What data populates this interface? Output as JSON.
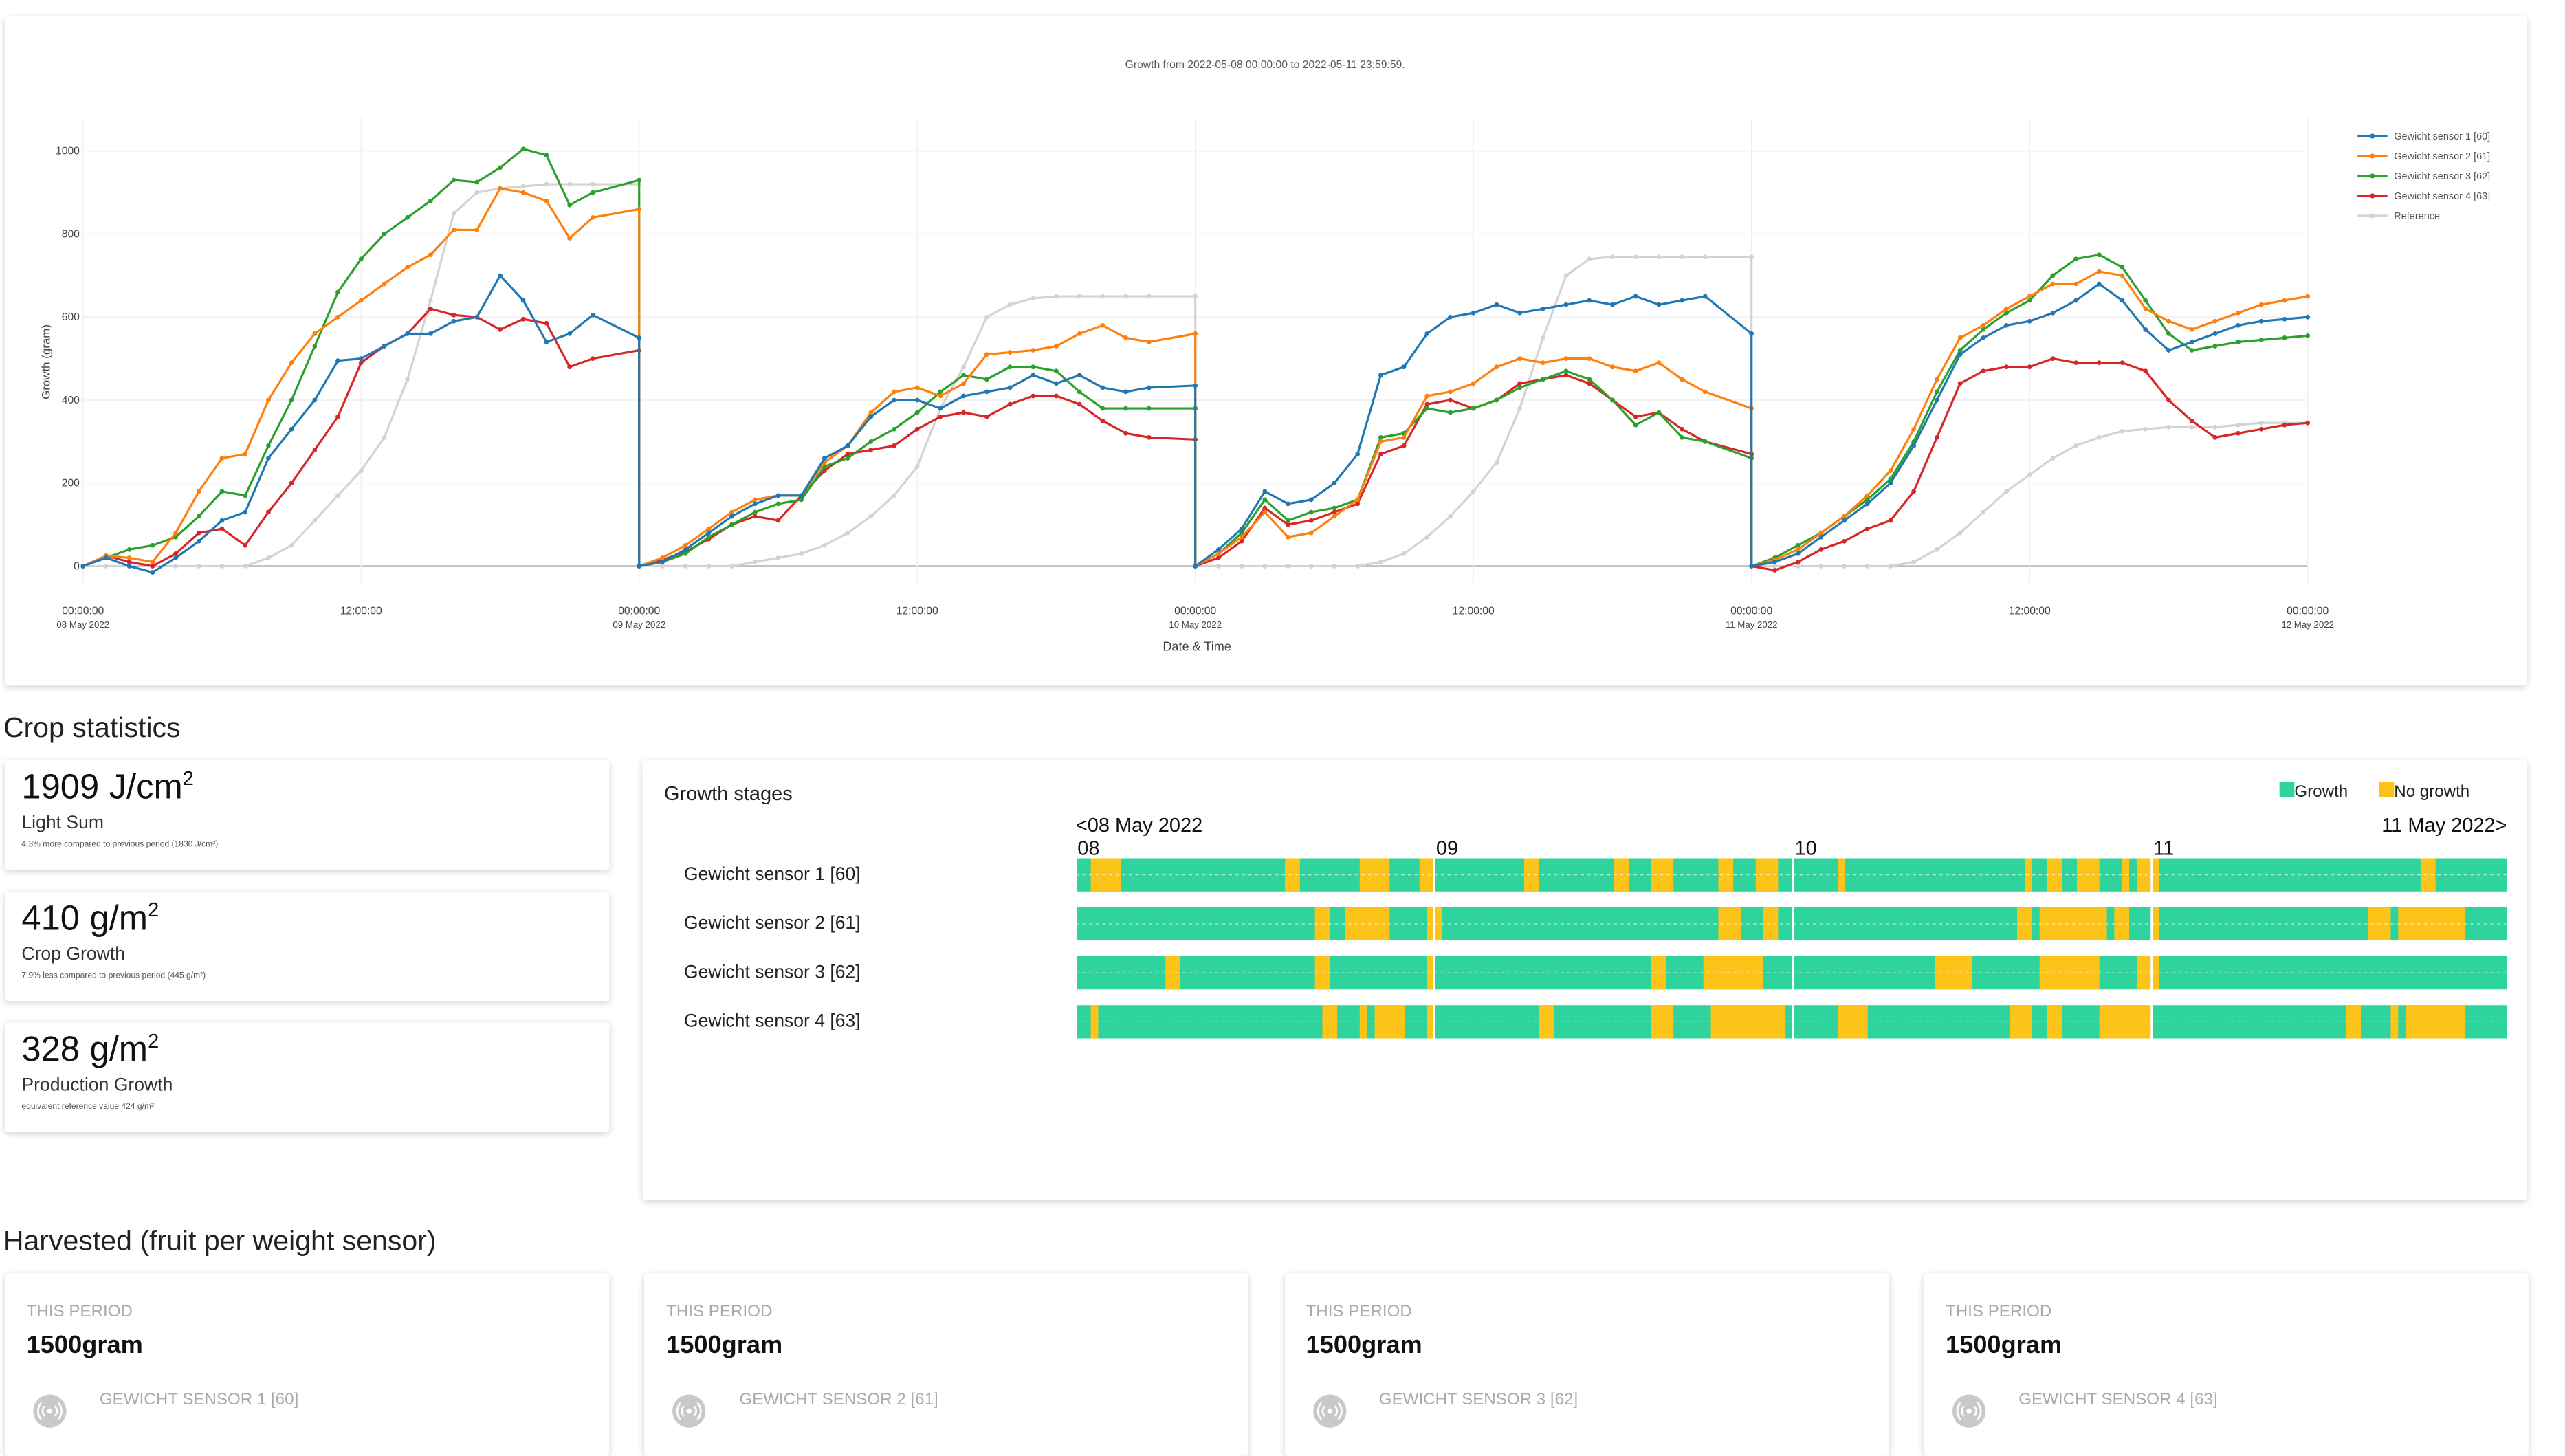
{
  "chart_data": [
    {
      "type": "line",
      "title": "Growth from 2022-05-08 00:00:00  to  2022-05-11 23:59:59.",
      "x_label": "Date & Time",
      "y_label": "Growth (gram)",
      "x": [
        "2022-05-08 00:00:00",
        "2022-05-08 01:00:00",
        "2022-05-08 02:00:00",
        "2022-05-08 03:00:00",
        "2022-05-08 04:00:00",
        "2022-05-08 05:00:00",
        "2022-05-08 06:00:00",
        "2022-05-08 07:00:00",
        "2022-05-08 08:00:00",
        "2022-05-08 09:00:00",
        "2022-05-08 10:00:00",
        "2022-05-08 11:00:00",
        "2022-05-08 12:00:00",
        "2022-05-08 13:00:00",
        "2022-05-08 14:00:00",
        "2022-05-08 15:00:00",
        "2022-05-08 16:00:00",
        "2022-05-08 17:00:00",
        "2022-05-08 18:00:00",
        "2022-05-08 19:00:00",
        "2022-05-08 20:00:00",
        "2022-05-08 21:00:00",
        "2022-05-08 22:00:00",
        "2022-05-08 23:59:59",
        "2022-05-09 00:00:00",
        "2022-05-09 01:00:00",
        "2022-05-09 02:00:00",
        "2022-05-09 03:00:00",
        "2022-05-09 04:00:00",
        "2022-05-09 05:00:00",
        "2022-05-09 06:00:00",
        "2022-05-09 07:00:00",
        "2022-05-09 08:00:00",
        "2022-05-09 09:00:00",
        "2022-05-09 10:00:00",
        "2022-05-09 11:00:00",
        "2022-05-09 12:00:00",
        "2022-05-09 13:00:00",
        "2022-05-09 14:00:00",
        "2022-05-09 15:00:00",
        "2022-05-09 16:00:00",
        "2022-05-09 17:00:00",
        "2022-05-09 18:00:00",
        "2022-05-09 19:00:00",
        "2022-05-09 20:00:00",
        "2022-05-09 21:00:00",
        "2022-05-09 22:00:00",
        "2022-05-09 23:59:59",
        "2022-05-10 00:00:00",
        "2022-05-10 01:00:00",
        "2022-05-10 02:00:00",
        "2022-05-10 03:00:00",
        "2022-05-10 04:00:00",
        "2022-05-10 05:00:00",
        "2022-05-10 06:00:00",
        "2022-05-10 07:00:00",
        "2022-05-10 08:00:00",
        "2022-05-10 09:00:00",
        "2022-05-10 10:00:00",
        "2022-05-10 11:00:00",
        "2022-05-10 12:00:00",
        "2022-05-10 13:00:00",
        "2022-05-10 14:00:00",
        "2022-05-10 15:00:00",
        "2022-05-10 16:00:00",
        "2022-05-10 17:00:00",
        "2022-05-10 18:00:00",
        "2022-05-10 19:00:00",
        "2022-05-10 20:00:00",
        "2022-05-10 21:00:00",
        "2022-05-10 22:00:00",
        "2022-05-10 23:59:59",
        "2022-05-11 00:00:00",
        "2022-05-11 01:00:00",
        "2022-05-11 02:00:00",
        "2022-05-11 03:00:00",
        "2022-05-11 04:00:00",
        "2022-05-11 05:00:00",
        "2022-05-11 06:00:00",
        "2022-05-11 07:00:00",
        "2022-05-11 08:00:00",
        "2022-05-11 09:00:00",
        "2022-05-11 10:00:00",
        "2022-05-11 11:00:00",
        "2022-05-11 12:00:00",
        "2022-05-11 13:00:00",
        "2022-05-11 14:00:00",
        "2022-05-11 15:00:00",
        "2022-05-11 16:00:00",
        "2022-05-11 17:00:00",
        "2022-05-11 18:00:00",
        "2022-05-11 19:00:00",
        "2022-05-11 20:00:00",
        "2022-05-11 21:00:00",
        "2022-05-11 22:00:00",
        "2022-05-11 23:00:00",
        "2022-05-12 00:00:00"
      ],
      "series": [
        {
          "name": "Gewicht sensor 1 [60]",
          "color": "#1f77b4",
          "values": [
            0,
            20,
            0,
            -15,
            20,
            60,
            110,
            130,
            260,
            330,
            400,
            495,
            500,
            530,
            560,
            560,
            590,
            600,
            700,
            640,
            540,
            560,
            605,
            550,
            0,
            10,
            40,
            80,
            120,
            150,
            170,
            170,
            260,
            290,
            360,
            400,
            400,
            380,
            410,
            420,
            430,
            460,
            440,
            460,
            430,
            420,
            430,
            435,
            0,
            40,
            90,
            180,
            150,
            160,
            200,
            270,
            460,
            480,
            560,
            600,
            610,
            630,
            610,
            620,
            630,
            640,
            630,
            650,
            630,
            640,
            650,
            560,
            0,
            10,
            30,
            70,
            110,
            150,
            200,
            290,
            400,
            510,
            550,
            580,
            590,
            610,
            640,
            680,
            640,
            570,
            520,
            540,
            560,
            580,
            590,
            595,
            600
          ]
        },
        {
          "name": "Gewicht sensor 2 [61]",
          "color": "#ff7f0e",
          "values": [
            0,
            25,
            20,
            10,
            80,
            180,
            260,
            270,
            400,
            490,
            560,
            600,
            640,
            680,
            720,
            750,
            810,
            810,
            910,
            900,
            880,
            790,
            840,
            860,
            0,
            20,
            50,
            90,
            130,
            160,
            170,
            170,
            250,
            290,
            370,
            420,
            430,
            410,
            440,
            510,
            515,
            520,
            530,
            560,
            580,
            550,
            540,
            560,
            0,
            30,
            70,
            130,
            70,
            80,
            120,
            160,
            300,
            310,
            410,
            420,
            440,
            480,
            500,
            490,
            500,
            500,
            480,
            470,
            490,
            450,
            420,
            380,
            0,
            15,
            40,
            80,
            120,
            170,
            230,
            330,
            450,
            550,
            580,
            620,
            650,
            680,
            680,
            710,
            700,
            620,
            590,
            570,
            590,
            610,
            630,
            640,
            650
          ]
        },
        {
          "name": "Gewicht sensor 3 [62]",
          "color": "#2ca02c",
          "values": [
            0,
            20,
            40,
            50,
            70,
            120,
            180,
            170,
            290,
            400,
            530,
            660,
            740,
            800,
            840,
            880,
            930,
            925,
            960,
            1005,
            990,
            870,
            900,
            930,
            0,
            10,
            30,
            70,
            100,
            130,
            150,
            160,
            240,
            260,
            300,
            330,
            370,
            420,
            460,
            450,
            480,
            480,
            470,
            420,
            380,
            380,
            380,
            380,
            0,
            30,
            80,
            160,
            110,
            130,
            140,
            160,
            310,
            320,
            380,
            370,
            380,
            400,
            430,
            450,
            470,
            450,
            400,
            340,
            370,
            310,
            300,
            260,
            0,
            20,
            50,
            80,
            120,
            160,
            210,
            300,
            420,
            520,
            570,
            610,
            640,
            700,
            740,
            750,
            720,
            640,
            560,
            520,
            530,
            540,
            545,
            550,
            555
          ]
        },
        {
          "name": "Gewicht sensor 4 [63]",
          "color": "#d62728",
          "values": [
            0,
            25,
            10,
            0,
            30,
            80,
            90,
            50,
            130,
            200,
            280,
            360,
            490,
            530,
            560,
            620,
            605,
            600,
            570,
            595,
            585,
            480,
            500,
            520,
            0,
            15,
            35,
            65,
            100,
            120,
            110,
            170,
            230,
            270,
            280,
            290,
            330,
            360,
            370,
            360,
            390,
            410,
            410,
            390,
            350,
            320,
            310,
            305,
            0,
            20,
            60,
            140,
            100,
            110,
            130,
            150,
            270,
            290,
            390,
            400,
            380,
            400,
            440,
            450,
            460,
            440,
            400,
            360,
            370,
            330,
            300,
            270,
            0,
            -10,
            10,
            40,
            60,
            90,
            110,
            180,
            310,
            440,
            470,
            480,
            480,
            500,
            490,
            490,
            490,
            470,
            400,
            350,
            310,
            320,
            330,
            340,
            345
          ]
        },
        {
          "name": "Reference",
          "color": "#d3d3d3",
          "values": [
            0,
            0,
            0,
            0,
            0,
            0,
            0,
            0,
            20,
            50,
            110,
            170,
            230,
            310,
            450,
            640,
            850,
            900,
            910,
            915,
            920,
            920,
            920,
            920,
            0,
            0,
            0,
            0,
            0,
            10,
            20,
            30,
            50,
            80,
            120,
            170,
            240,
            380,
            480,
            600,
            630,
            645,
            650,
            650,
            650,
            650,
            650,
            650,
            0,
            0,
            0,
            0,
            0,
            0,
            0,
            0,
            10,
            30,
            70,
            120,
            180,
            250,
            380,
            550,
            700,
            740,
            745,
            745,
            745,
            745,
            745,
            745,
            0,
            0,
            0,
            0,
            0,
            0,
            0,
            10,
            40,
            80,
            130,
            180,
            220,
            260,
            290,
            310,
            325,
            330,
            335,
            335,
            335,
            340,
            345,
            345,
            345
          ]
        }
      ],
      "xlim": [
        "2022-05-08 00:00:00",
        "2022-05-12 00:00:00"
      ],
      "ylim": [
        -40,
        1080
      ],
      "yticks": [
        0,
        200,
        400,
        600,
        800,
        1000
      ],
      "xticks": [
        {
          "value": "2022-05-08 00:00:00",
          "label": "00:00:00",
          "sublabel": "08 May 2022"
        },
        {
          "value": "2022-05-08 12:00:00",
          "label": "12:00:00"
        },
        {
          "value": "2022-05-09 00:00:00",
          "label": "00:00:00",
          "sublabel": "09 May 2022"
        },
        {
          "value": "2022-05-09 12:00:00",
          "label": "12:00:00"
        },
        {
          "value": "2022-05-10 00:00:00",
          "label": "00:00:00",
          "sublabel": "10 May 2022"
        },
        {
          "value": "2022-05-10 12:00:00",
          "label": "12:00:00"
        },
        {
          "value": "2022-05-11 00:00:00",
          "label": "00:00:00",
          "sublabel": "11 May 2022"
        },
        {
          "value": "2022-05-11 12:00:00",
          "label": "12:00:00"
        },
        {
          "value": "2022-05-12 00:00:00",
          "label": "00:00:00",
          "sublabel": "12 May 2022"
        }
      ],
      "grid": true,
      "legend": "top-right"
    },
    {
      "type": "timeline",
      "title": "Growth stages",
      "legend": [
        {
          "name": "Growth",
          "color": "#2ed39e"
        },
        {
          "name": "No growth",
          "color": "#fcc419"
        }
      ],
      "range_start": "<08 May 2022",
      "range_end": "11 May 2022>",
      "xlim": [
        0,
        96
      ],
      "xticks": [
        {
          "value": 0,
          "label": "08"
        },
        {
          "value": 24,
          "label": "09"
        },
        {
          "value": 48,
          "label": "10"
        },
        {
          "value": 72,
          "label": "11"
        }
      ],
      "rows": [
        {
          "name": "Gewicht sensor 1 [60]",
          "no_growth": [
            [
              1,
              3
            ],
            [
              14,
              15
            ],
            [
              19,
              21
            ],
            [
              23,
              24
            ],
            [
              30,
              31
            ],
            [
              36,
              37
            ],
            [
              38.5,
              40
            ],
            [
              43,
              44
            ],
            [
              45.5,
              47
            ],
            [
              51,
              51.5
            ],
            [
              63.5,
              64
            ],
            [
              65,
              66
            ],
            [
              67,
              68.5
            ],
            [
              70,
              70.5
            ],
            [
              71,
              72.5
            ],
            [
              90,
              91
            ]
          ]
        },
        {
          "name": "Gewicht sensor 2 [61]",
          "no_growth": [
            [
              16,
              17
            ],
            [
              18,
              21
            ],
            [
              23.5,
              24.5
            ],
            [
              43,
              44.5
            ],
            [
              46,
              47
            ],
            [
              63,
              64
            ],
            [
              64.5,
              69
            ],
            [
              69.5,
              70.5
            ],
            [
              72,
              72.5
            ],
            [
              86.5,
              88
            ],
            [
              88.5,
              93
            ]
          ]
        },
        {
          "name": "Gewicht sensor 3 [62]",
          "no_growth": [
            [
              6,
              7
            ],
            [
              16,
              17
            ],
            [
              23.5,
              24
            ],
            [
              38.5,
              39.5
            ],
            [
              42,
              46
            ],
            [
              57.5,
              60
            ],
            [
              64.5,
              68.5
            ],
            [
              71,
              72.5
            ]
          ]
        },
        {
          "name": "Gewicht sensor 4 [63]",
          "no_growth": [
            [
              1,
              1.5
            ],
            [
              16.5,
              17.5
            ],
            [
              19,
              19.5
            ],
            [
              20,
              22
            ],
            [
              23.5,
              24
            ],
            [
              31,
              32
            ],
            [
              38.5,
              40
            ],
            [
              42.5,
              47.5
            ],
            [
              51,
              53
            ],
            [
              62.5,
              64
            ],
            [
              65,
              66
            ],
            [
              68.5,
              72
            ],
            [
              85,
              86
            ],
            [
              88,
              88.5
            ],
            [
              89,
              93
            ]
          ]
        }
      ]
    }
  ],
  "crop_statistics": {
    "title": "Crop statistics",
    "cards": [
      {
        "value": 1909,
        "unit": "J/cm",
        "power": "2",
        "label": "Light Sum",
        "note": "4.3% more compared to previous period (1830 J/cm²)"
      },
      {
        "value": 410,
        "unit": "g/m",
        "power": "2",
        "label": "Crop Growth",
        "note": "7.9% less compared to previous period (445 g/m²)"
      },
      {
        "value": 328,
        "unit": "g/m",
        "power": "2",
        "label": "Production Growth",
        "note": "equivalent reference value 424 g/m²"
      }
    ]
  },
  "harvested": {
    "title": "Harvested (fruit per weight sensor)",
    "cards": [
      {
        "period": "THIS PERIOD",
        "amount": "1500gram",
        "sensor": "GEWICHT SENSOR 1 [60]"
      },
      {
        "period": "THIS PERIOD",
        "amount": "1500gram",
        "sensor": "GEWICHT SENSOR 2 [61]"
      },
      {
        "period": "THIS PERIOD",
        "amount": "1500gram",
        "sensor": "GEWICHT SENSOR 3 [62]"
      },
      {
        "period": "THIS PERIOD",
        "amount": "1500gram",
        "sensor": "GEWICHT SENSOR 4 [63]"
      }
    ]
  }
}
